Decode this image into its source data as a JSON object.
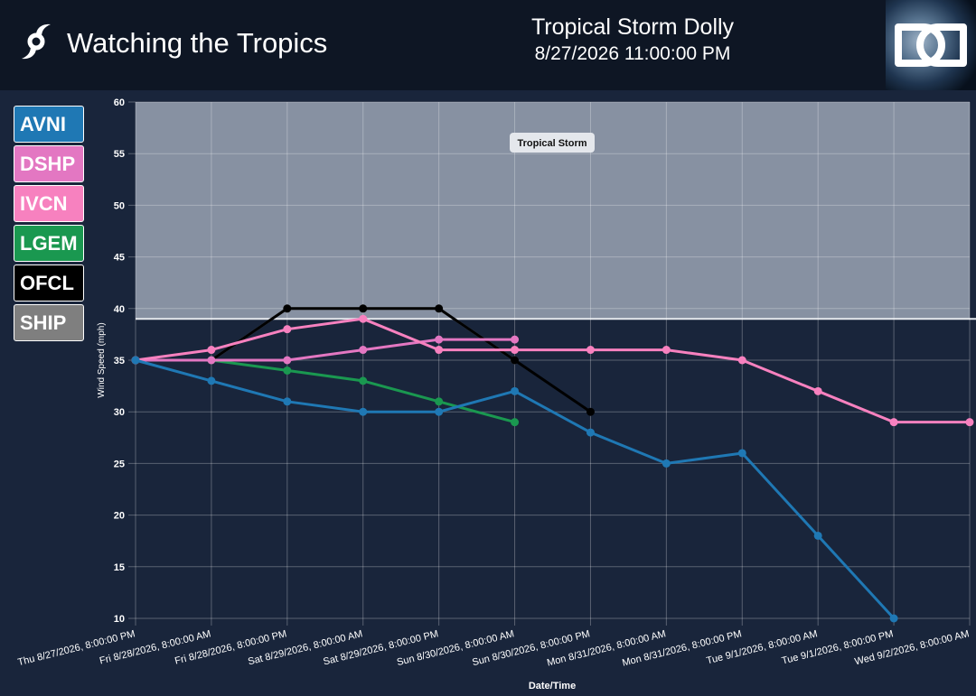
{
  "header": {
    "title": "Watching the Tropics",
    "storm_name": "Tropical Storm Dolly",
    "timestamp": "8/27/2026 11:00:00 PM",
    "logo_icon": "dd-logo-icon",
    "hurricane_icon": "hurricane-symbol-icon"
  },
  "legend": {
    "items": [
      {
        "label": "AVNI",
        "color": "#1f78b4"
      },
      {
        "label": "DSHP",
        "color": "#e377c2"
      },
      {
        "label": "IVCN",
        "color": "#f781bf"
      },
      {
        "label": "LGEM",
        "color": "#1a9850"
      },
      {
        "label": "OFCL",
        "color": "#000000"
      },
      {
        "label": "SHIP",
        "color": "#7f7f7f"
      }
    ]
  },
  "chart_data": {
    "type": "line",
    "xlabel": "Date/Time",
    "ylabel": "Wind Speed (mph)",
    "ylim": [
      10,
      60
    ],
    "yticks": [
      10,
      15,
      20,
      25,
      30,
      35,
      40,
      45,
      50,
      55,
      60
    ],
    "grid": true,
    "categories": [
      "Thu 8/27/2026, 8:00:00 PM",
      "Fri 8/28/2026, 8:00:00 AM",
      "Fri 8/28/2026, 8:00:00 PM",
      "Sat 8/29/2026, 8:00:00 AM",
      "Sat 8/29/2026, 8:00:00 PM",
      "Sun 8/30/2026, 8:00:00 AM",
      "Sun 8/30/2026, 8:00:00 PM",
      "Mon 8/31/2026, 8:00:00 AM",
      "Mon 8/31/2026, 8:00:00 PM",
      "Tue 9/1/2026, 8:00:00 AM",
      "Tue 9/1/2026, 8:00:00 PM",
      "Wed 9/2/2026, 8:00:00 AM"
    ],
    "band": {
      "label": "Tropical Storm",
      "from": 39,
      "to": 60
    },
    "series": [
      {
        "name": "SHIP",
        "color": "#7f7f7f",
        "values": [
          35,
          35,
          40,
          40,
          40,
          35,
          null,
          null,
          null,
          null,
          null,
          null
        ]
      },
      {
        "name": "OFCL",
        "color": "#000000",
        "values": [
          35,
          35,
          40,
          40,
          40,
          35,
          30,
          null,
          null,
          null,
          null,
          null
        ]
      },
      {
        "name": "LGEM",
        "color": "#1a9850",
        "values": [
          35,
          35,
          34,
          33,
          31,
          29,
          null,
          null,
          null,
          null,
          null,
          null
        ]
      },
      {
        "name": "DSHP",
        "color": "#e377c2",
        "values": [
          35,
          35,
          35,
          36,
          37,
          37,
          null,
          null,
          null,
          null,
          null,
          null
        ]
      },
      {
        "name": "IVCN",
        "color": "#f781bf",
        "values": [
          35,
          36,
          38,
          39,
          36,
          36,
          36,
          36,
          35,
          32,
          29,
          29
        ]
      },
      {
        "name": "AVNI",
        "color": "#1f78b4",
        "values": [
          35,
          33,
          31,
          30,
          30,
          32,
          28,
          25,
          26,
          18,
          10,
          null
        ]
      }
    ]
  }
}
